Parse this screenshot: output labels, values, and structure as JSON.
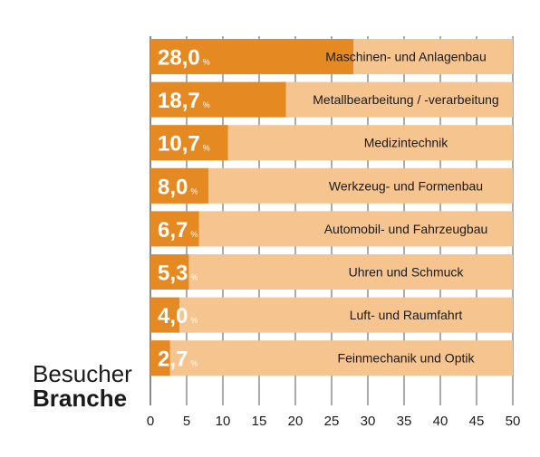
{
  "chart_data": {
    "type": "bar",
    "orientation": "horizontal",
    "title_line1": "Besucher",
    "title_line2": "Branche",
    "categories": [
      "Maschinen- und Anlagenbau",
      "Metallbearbeitung / -verarbeitung",
      "Medizintechnik",
      "Werkzeug- und Formenbau",
      "Automobil- und Fahrzeugbau",
      "Uhren und Schmuck",
      "Luft- und Raumfahrt",
      "Feinmechanik und Optik"
    ],
    "values": [
      28.0,
      18.7,
      10.7,
      8.0,
      6.7,
      5.3,
      4.0,
      2.7
    ],
    "value_labels": [
      "28,0",
      "18,7",
      "10,7",
      "8,0",
      "6,7",
      "5,3",
      "4,0",
      "2,7"
    ],
    "unit": "%",
    "xlim": [
      0,
      50
    ],
    "xticks": [
      "0",
      "5",
      "10",
      "15",
      "20",
      "25",
      "30",
      "35",
      "40",
      "45",
      "50"
    ],
    "grid": true,
    "colors": {
      "bar": "#e58a23",
      "track": "#f6c48f",
      "grid": "#555555",
      "text": "#1a1a1a",
      "value_text": "#ffffff"
    }
  }
}
